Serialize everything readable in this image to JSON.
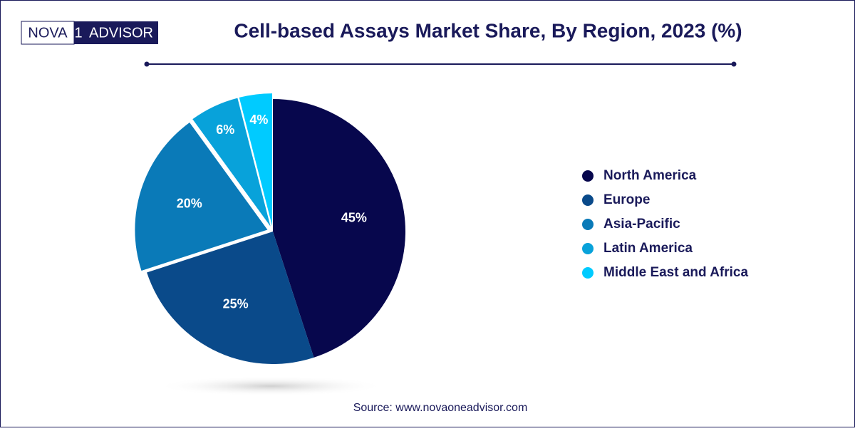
{
  "logo": {
    "left": "NOVA",
    "mark": "1",
    "right": "ADVISOR"
  },
  "chart_data": {
    "type": "pie",
    "title": "Cell-based Assays Market Share, By Region, 2023 (%)",
    "categories": [
      "North America",
      "Europe",
      "Asia-Pacific",
      "Latin America",
      "Middle East and Africa"
    ],
    "values": [
      45,
      25,
      20,
      6,
      4
    ],
    "value_labels": [
      "45%",
      "25%",
      "20%",
      "6%",
      "4%"
    ],
    "colors": [
      "#07074d",
      "#0a4a8a",
      "#0a7ab8",
      "#08a2da",
      "#00cbff"
    ],
    "source": "Source: www.novaoneadvisor.com"
  }
}
